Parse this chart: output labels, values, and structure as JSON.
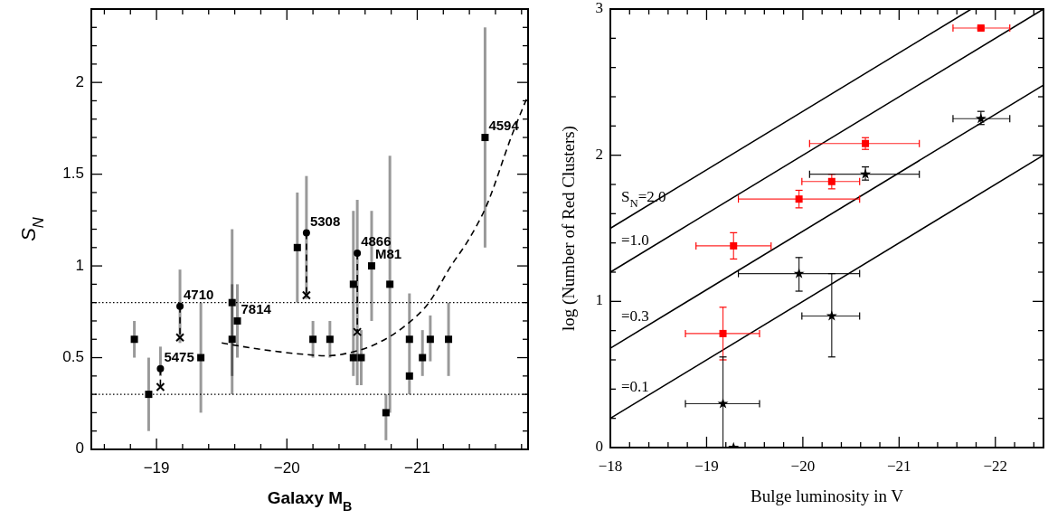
{
  "chart_data": [
    {
      "type": "scatter",
      "xlabel": "Galaxy M$_{B}$",
      "ylabel": "S$_{N}$",
      "xlim": [
        -18.5,
        -21.85
      ],
      "ylim": [
        0,
        2.4
      ],
      "xticks": [
        {
          "value": -18.6,
          "label": null
        },
        {
          "value": -18.8,
          "label": null
        },
        {
          "value": -19,
          "label": "−19"
        },
        {
          "value": -19.2,
          "label": null
        },
        {
          "value": -19.4,
          "label": null
        },
        {
          "value": -19.6,
          "label": null
        },
        {
          "value": -19.8,
          "label": null
        },
        {
          "value": -20,
          "label": "−20"
        },
        {
          "value": -20.2,
          "label": null
        },
        {
          "value": -20.4,
          "label": null
        },
        {
          "value": -20.6,
          "label": null
        },
        {
          "value": -20.8,
          "label": null
        },
        {
          "value": -21,
          "label": "−21"
        },
        {
          "value": -21.2,
          "label": null
        },
        {
          "value": -21.4,
          "label": null
        },
        {
          "value": -21.6,
          "label": null
        },
        {
          "value": -21.8,
          "label": null
        }
      ],
      "yticks": [
        0,
        {
          "value": 0.1,
          "label": null
        },
        {
          "value": 0.2,
          "label": null
        },
        {
          "value": 0.3,
          "label": null
        },
        {
          "value": 0.4,
          "label": null
        },
        0.5,
        {
          "value": 0.6,
          "label": null
        },
        {
          "value": 0.7,
          "label": null
        },
        {
          "value": 0.8,
          "label": null
        },
        {
          "value": 0.9,
          "label": null
        },
        1,
        {
          "value": 1.1,
          "label": null
        },
        {
          "value": 1.2,
          "label": null
        },
        {
          "value": 1.3,
          "label": null
        },
        {
          "value": 1.4,
          "label": null
        },
        1.5,
        {
          "value": 1.6,
          "label": null
        },
        {
          "value": 1.7,
          "label": null
        },
        {
          "value": 1.8,
          "label": null
        },
        {
          "value": 1.9,
          "label": null
        },
        2,
        {
          "value": 2.1,
          "label": null
        },
        {
          "value": 2.2,
          "label": null
        },
        {
          "value": 2.3,
          "label": null
        }
      ],
      "ref_lines": [
        {
          "axis": "y",
          "value": 0.8,
          "line_style": "dotted",
          "color": "#000000"
        },
        {
          "axis": "y",
          "value": 0.3,
          "line_style": "dotted",
          "color": "#000000"
        }
      ],
      "series": [
        {
          "type": "line",
          "color": "#000000",
          "line_style": "dashed",
          "marker": "none",
          "x": [
            -19.5,
            -19.8,
            -20.1,
            -20.3,
            -20.5,
            -20.7,
            -20.9,
            -21.1,
            -21.25,
            -21.4,
            -21.52,
            -21.73,
            -21.85
          ],
          "values": [
            0.58,
            0.545,
            0.52,
            0.51,
            0.53,
            0.58,
            0.67,
            0.81,
            0.99,
            1.15,
            1.31,
            1.72,
            1.93
          ]
        },
        {
          "type": "line",
          "color": "#000000",
          "line_style": "dashed",
          "marker": "none",
          "x": [
            -19.03,
            -19.03
          ],
          "values": [
            0.44,
            0.34
          ]
        },
        {
          "type": "line",
          "color": "#000000",
          "line_style": "dashed",
          "marker": "none",
          "x": [
            -19.18,
            -19.18
          ],
          "values": [
            0.78,
            0.61
          ]
        },
        {
          "type": "line",
          "color": "#000000",
          "line_style": "dashed",
          "marker": "none",
          "x": [
            -20.15,
            -20.15
          ],
          "values": [
            1.18,
            0.84
          ]
        },
        {
          "type": "line",
          "color": "#000000",
          "line_style": "dashed",
          "marker": "none",
          "x": [
            -20.54,
            -20.54
          ],
          "values": [
            1.07,
            0.64
          ]
        },
        {
          "color": "#000000",
          "marker": "square",
          "x": [
            -18.83,
            -18.94,
            -19.34,
            -19.58,
            -19.58,
            -20.08,
            -20.2,
            -20.33,
            -20.51,
            -20.51,
            -20.57,
            -20.79,
            -20.76,
            -20.94,
            -20.94,
            -21.04,
            -21.1,
            -21.24
          ],
          "values": [
            0.6,
            0.3,
            0.5,
            0.8,
            0.6,
            1.1,
            0.6,
            0.6,
            0.9,
            0.5,
            0.5,
            0.9,
            0.2,
            0.6,
            0.4,
            0.5,
            0.6,
            0.6
          ],
          "errors": [
            [
              0.5,
              0.7
            ],
            [
              0.1,
              0.5
            ],
            [
              0.2,
              0.8
            ],
            [
              0.3,
              1.2
            ],
            [
              0.4,
              0.9
            ],
            [
              0.8,
              1.4
            ],
            [
              0.5,
              0.7
            ],
            [
              0.5,
              0.7
            ],
            [
              0.4,
              1.3
            ],
            null,
            [
              0.35,
              0.65
            ],
            [
              0.2,
              1.6
            ],
            [
              0.05,
              0.3
            ],
            [
              0.3,
              0.85
            ],
            null,
            [
              0.4,
              0.65
            ],
            [
              0.48,
              0.73
            ],
            [
              0.4,
              0.8
            ]
          ]
        },
        {
          "color": "#000000",
          "marker": "square",
          "x": [
            -19.62,
            -20.65,
            -21.52
          ],
          "values": [
            0.7,
            1.0,
            1.7
          ],
          "errors": [
            [
              0.5,
              0.9
            ],
            [
              0.7,
              1.3
            ],
            [
              1.1,
              2.3
            ]
          ]
        },
        {
          "color": "#000000",
          "marker": "circle",
          "x": [
            -19.03,
            -19.18,
            -20.15,
            -20.54
          ],
          "values": [
            0.44,
            0.78,
            1.18,
            1.07
          ],
          "errors": [
            [
              0.4,
              0.56
            ],
            [
              0.58,
              0.98
            ],
            [
              0.82,
              1.49
            ],
            [
              0.35,
              1.36
            ]
          ]
        },
        {
          "color": "#000000",
          "marker": "cross",
          "x": [
            -19.03,
            -19.18,
            -20.15,
            -20.54
          ],
          "values": [
            0.34,
            0.61,
            0.84,
            0.64
          ]
        }
      ],
      "annotations": [
        {
          "text": "5475",
          "x": -19.03,
          "y": 0.44
        },
        {
          "text": "4710",
          "x": -19.18,
          "y": 0.78
        },
        {
          "text": "7814",
          "x": -19.62,
          "y": 0.7
        },
        {
          "text": "5308",
          "x": -20.15,
          "y": 1.18
        },
        {
          "text": "4866",
          "x": -20.54,
          "y": 1.07
        },
        {
          "text": "M81",
          "x": -20.65,
          "y": 1.0
        },
        {
          "text": "4594",
          "x": -21.52,
          "y": 1.7
        }
      ]
    },
    {
      "type": "scatter",
      "xlabel": "Bulge luminosity in V",
      "ylabel": "log (Number of Red Clusters)",
      "xlim": [
        -18,
        -22.5
      ],
      "ylim": [
        0,
        3
      ],
      "xticks": [
        {
          "value": -18,
          "label": "−18"
        },
        {
          "value": -18.2,
          "label": null
        },
        {
          "value": -18.4,
          "label": null
        },
        {
          "value": -18.6,
          "label": null
        },
        {
          "value": -18.8,
          "label": null
        },
        {
          "value": -19,
          "label": "−19"
        },
        {
          "value": -19.2,
          "label": null
        },
        {
          "value": -19.4,
          "label": null
        },
        {
          "value": -19.6,
          "label": null
        },
        {
          "value": -19.8,
          "label": null
        },
        {
          "value": -20,
          "label": "−20"
        },
        {
          "value": -20.2,
          "label": null
        },
        {
          "value": -20.4,
          "label": null
        },
        {
          "value": -20.6,
          "label": null
        },
        {
          "value": -20.8,
          "label": null
        },
        {
          "value": -21,
          "label": "−21"
        },
        {
          "value": -21.2,
          "label": null
        },
        {
          "value": -21.4,
          "label": null
        },
        {
          "value": -21.6,
          "label": null
        },
        {
          "value": -21.8,
          "label": null
        },
        {
          "value": -22,
          "label": "−22"
        },
        {
          "value": -22.2,
          "label": null
        },
        {
          "value": -22.4,
          "label": null
        }
      ],
      "yticks": [
        0,
        {
          "value": 0.2,
          "label": null
        },
        {
          "value": 0.4,
          "label": null
        },
        {
          "value": 0.6,
          "label": null
        },
        {
          "value": 0.8,
          "label": null
        },
        1,
        {
          "value": 1.2,
          "label": null
        },
        {
          "value": 1.4,
          "label": null
        },
        {
          "value": 1.6,
          "label": null
        },
        {
          "value": 1.8,
          "label": null
        },
        2,
        {
          "value": 2.2,
          "label": null
        },
        {
          "value": 2.4,
          "label": null
        },
        {
          "value": 2.6,
          "label": null
        },
        {
          "value": 2.8,
          "label": null
        },
        3
      ],
      "series": [
        {
          "type": "line",
          "name": "S$_{N}$=2.0",
          "color": "#000000",
          "line_style": "solid",
          "marker": "none",
          "x": [
            -18,
            -21.75
          ],
          "values": [
            1.5,
            3.0
          ]
        },
        {
          "type": "line",
          "name": "=1.0",
          "color": "#000000",
          "line_style": "solid",
          "marker": "none",
          "x": [
            -18,
            -22.5
          ],
          "values": [
            1.2,
            3.0
          ]
        },
        {
          "type": "line",
          "name": "=0.3",
          "color": "#000000",
          "line_style": "solid",
          "marker": "none",
          "x": [
            -18,
            -22.5
          ],
          "values": [
            0.68,
            2.48
          ]
        },
        {
          "type": "line",
          "name": "=0.1",
          "color": "#000000",
          "line_style": "solid",
          "marker": "none",
          "x": [
            -18,
            -22.5
          ],
          "values": [
            0.2,
            2.0
          ]
        },
        {
          "color": "#ff0000",
          "marker": "square",
          "x": [
            -21.85,
            -20.65,
            -20.3,
            -19.96,
            -19.28,
            -19.17
          ],
          "values": [
            2.87,
            2.08,
            1.82,
            1.7,
            1.38,
            0.78
          ],
          "errors": [
            [
              2.86,
              2.88
            ],
            [
              2.04,
              2.12
            ],
            [
              1.77,
              1.87
            ],
            [
              1.64,
              1.76
            ],
            [
              1.29,
              1.47
            ],
            [
              0.6,
              0.96
            ]
          ],
          "xerrors": [
            [
              -21.56,
              -22.15
            ],
            [
              -20.07,
              -21.21
            ],
            [
              -19.99,
              -20.59
            ],
            [
              -19.33,
              -20.59
            ],
            [
              -18.89,
              -19.67
            ],
            [
              -18.78,
              -19.55
            ]
          ]
        },
        {
          "color": "#000000",
          "marker": "star",
          "x": [
            -21.85,
            -20.65,
            -19.96,
            -20.3,
            -19.17,
            -19.28
          ],
          "values": [
            2.25,
            1.87,
            1.19,
            0.9,
            0.3,
            0
          ],
          "errors": [
            [
              2.21,
              2.3
            ],
            [
              1.83,
              1.92
            ],
            [
              1.07,
              1.3
            ],
            [
              0.62,
              1.19
            ],
            [
              0,
              0.62
            ],
            null
          ],
          "xerrors": [
            [
              -21.56,
              -22.15
            ],
            [
              -20.07,
              -21.21
            ],
            [
              -19.33,
              -20.59
            ],
            [
              -19.99,
              -20.59
            ],
            [
              -18.78,
              -19.55
            ],
            null
          ]
        }
      ]
    }
  ]
}
